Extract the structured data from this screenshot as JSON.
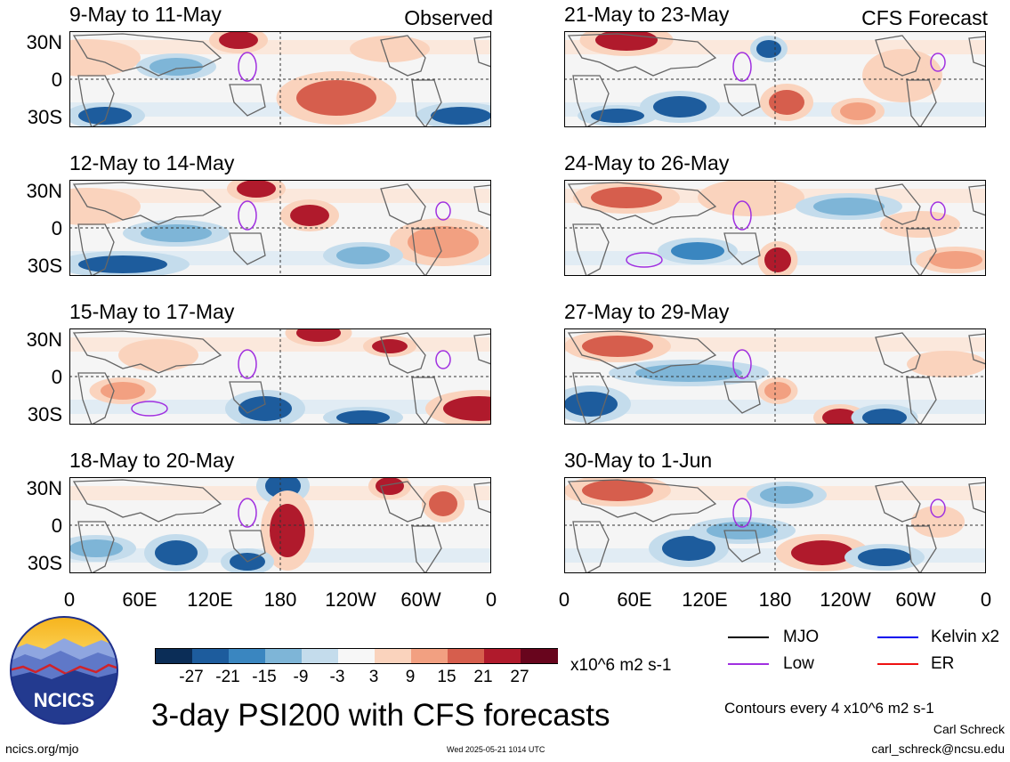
{
  "panels": {
    "left": [
      {
        "title": "9-May to 11-May",
        "tag": "Observed"
      },
      {
        "title": "12-May to 14-May",
        "tag": ""
      },
      {
        "title": "15-May to 17-May",
        "tag": ""
      },
      {
        "title": "18-May to 20-May",
        "tag": ""
      }
    ],
    "right": [
      {
        "title": "21-May to 23-May",
        "tag": "CFS Forecast"
      },
      {
        "title": "24-May to 26-May",
        "tag": ""
      },
      {
        "title": "27-May to 29-May",
        "tag": ""
      },
      {
        "title": "30-May to 1-Jun",
        "tag": ""
      }
    ]
  },
  "axes": {
    "y_ticks": [
      "30N",
      "0",
      "30S"
    ],
    "x_ticks": [
      "0",
      "60E",
      "120E",
      "180",
      "120W",
      "60W",
      "0"
    ]
  },
  "colorbar": {
    "ticks": [
      "-27",
      "-21",
      "-15",
      "-9",
      "-3",
      "3",
      "9",
      "15",
      "21",
      "27"
    ],
    "units": "x10^6 m2 s-1",
    "colors": [
      "#0b2d57",
      "#1d5c9d",
      "#3a86c0",
      "#7eb5d7",
      "#c4dcec",
      "#f7f7f7",
      "#fad3bd",
      "#f2a081",
      "#d65e4d",
      "#b01a2c",
      "#68051d"
    ]
  },
  "legend": {
    "items": [
      {
        "label": "MJO",
        "color": "#000000"
      },
      {
        "label": "Kelvin x2",
        "color": "#0000ee"
      },
      {
        "label": "Low",
        "color": "#a030e0"
      },
      {
        "label": "ER",
        "color": "#ee1111"
      }
    ]
  },
  "logo": {
    "text": "NCICS"
  },
  "main_title": "3-day PSI200 with CFS forecasts",
  "contour_note": "Contours every 4 x10^6 m2 s-1",
  "author": "Carl Schreck",
  "email": "carl_schreck@ncsu.edu",
  "url": "ncics.org/mjo",
  "timestamp": "Wed 2025-05-21 1014 UTC"
}
